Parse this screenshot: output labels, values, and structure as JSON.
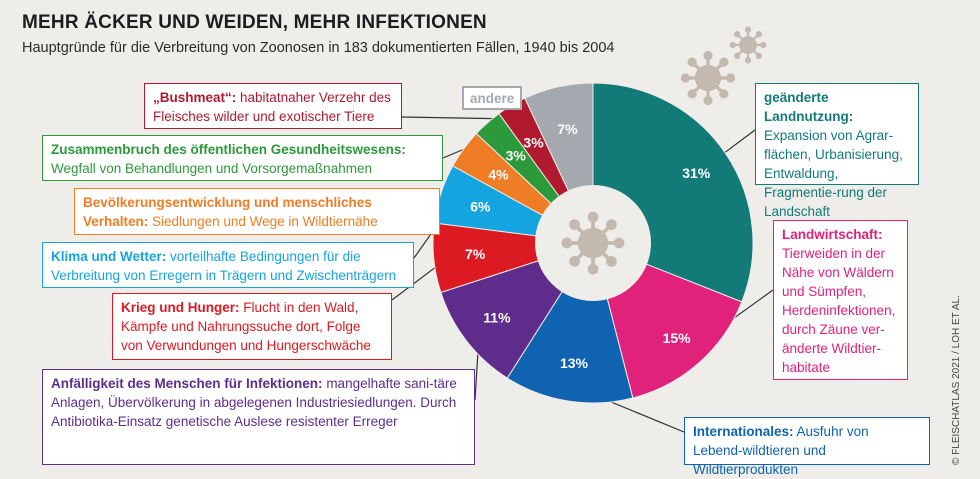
{
  "title": "MEHR ÄCKER UND WEIDEN, MEHR INFEKTIONEN",
  "subtitle": "Hauptgründe für die Verbreitung von Zoonosen in 183 dokumentierten Fällen, 1940 bis 2004",
  "credit": "© FLEISCHATLAS 2021 / LOH ET AL.",
  "chart_data": {
    "type": "pie",
    "title": "MEHR ÄCKER UND WEIDEN, MEHR INFEKTIONEN",
    "subtitle": "Hauptgründe für die Verbreitung von Zoonosen in 183 dokumentierten Fällen, 1940 bis 2004",
    "unit": "%",
    "slices": [
      {
        "key": "landnutzung",
        "label": "31%",
        "value": 31,
        "color": "#127a77",
        "head": "geänderte Landnutzung:",
        "text": "Expansion von Agrar-flächen, Urbanisierung, Entwaldung, Fragmentie-rung der Landschaft"
      },
      {
        "key": "landwirtschaft",
        "label": "15%",
        "value": 15,
        "color": "#e0227a",
        "head": "Landwirtschaft:",
        "text": "Tierweiden in der Nähe von Wäldern und Sümpfen, Herdeninfektionen, durch Zäune ver-änderte Wildtier-habitate"
      },
      {
        "key": "internationales",
        "label": "13%",
        "value": 13,
        "color": "#0f63b0",
        "head": "Internationales:",
        "text": "Ausfuhr von Lebend-wildtieren und Wildtierprodukten"
      },
      {
        "key": "anfaelligkeit",
        "label": "11%",
        "value": 11,
        "color": "#5e2d8c",
        "head": "Anfälligkeit des Menschen für Infektionen:",
        "text": "mangelhafte sani-täre Anlagen, Übervölkerung in abgelegenen Industriesiedlungen. Durch Antibiotika-Einsatz genetische Auslese resistenter Erreger"
      },
      {
        "key": "krieg",
        "label": "7%",
        "value": 7,
        "color": "#dc1a22",
        "head": "Krieg und Hunger:",
        "text": "Flucht in den Wald, Kämpfe und Nahrungssuche dort, Folge von Verwundungen und Hungerschwäche"
      },
      {
        "key": "klima",
        "label": "6%",
        "value": 6,
        "color": "#14a4df",
        "head": "Klima und Wetter:",
        "text": "vorteilhafte Bedingungen für die Verbreitung von Erregern in Trägern und Zwischenträgern"
      },
      {
        "key": "bevoelkerung",
        "label": "4%",
        "value": 4,
        "color": "#ee7d25",
        "head": "Bevölkerungsentwicklung und menschliches Verhalten:",
        "text": "Siedlungen und Wege in Wildtiernähe"
      },
      {
        "key": "gesundheit",
        "label": "3%",
        "value": 3,
        "color": "#2c9a3a",
        "head": "Zusammenbruch des öffentlichen Gesundheitswesens:",
        "text": "Wegfall von Behandlungen und Vorsorgemaßnahmen"
      },
      {
        "key": "bushmeat",
        "label": "3%",
        "value": 3,
        "color": "#b0192e",
        "head": "„Bushmeat“:",
        "text": "habitatnaher Verzehr des Fleisches wilder und exotischer Tiere"
      },
      {
        "key": "andere",
        "label": "7%",
        "value": 7,
        "color": "#a3a9af",
        "head": "andere",
        "text": ""
      }
    ]
  },
  "colors": {
    "background": "#efedea",
    "virus": "#c4b9ae",
    "hole": "#efedea"
  }
}
